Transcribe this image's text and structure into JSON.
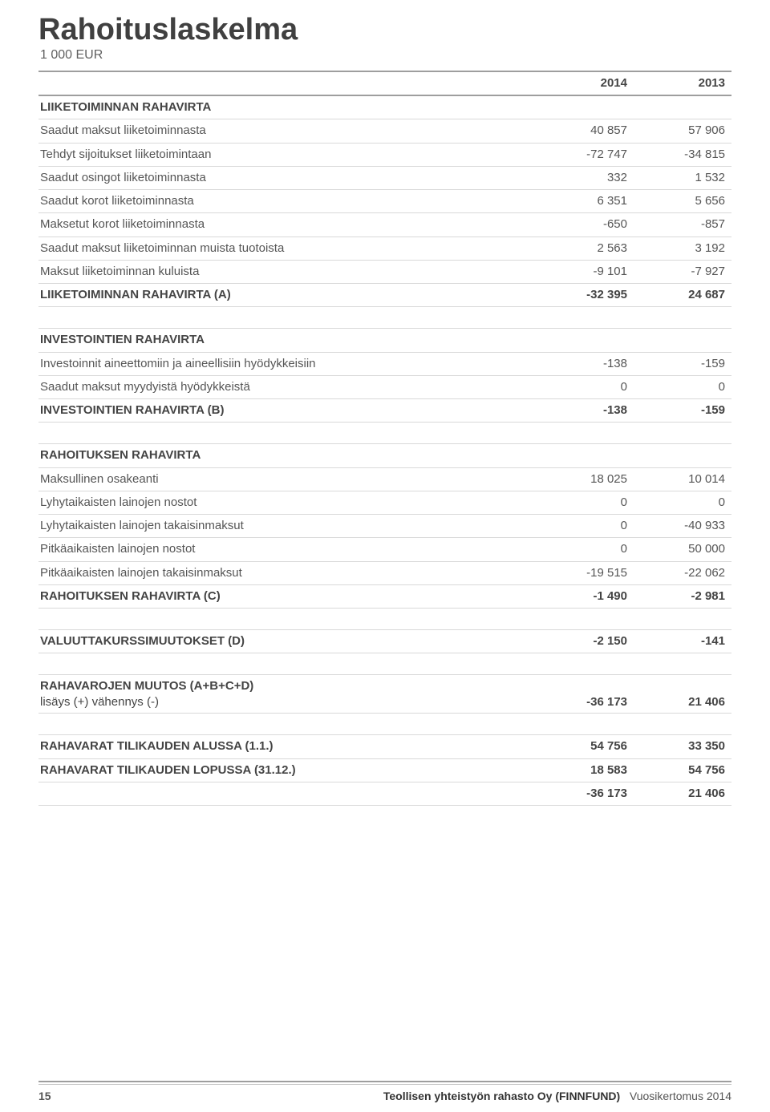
{
  "title": "Rahoituslaskelma",
  "subtitle": "1 000 EUR",
  "colors": {
    "text": "#404040",
    "muted": "#555555",
    "row_border": "#d9d9d9",
    "heavy_rule": "#9e9e9e",
    "background": "#ffffff"
  },
  "columns": {
    "year1": "2014",
    "year2": "2013"
  },
  "sections": [
    {
      "heading": "LIIKETOIMINNAN RAHAVIRTA",
      "rows": [
        {
          "label": "Saadut maksut liiketoiminnasta",
          "v1": "40 857",
          "v2": "57 906"
        },
        {
          "label": "Tehdyt sijoitukset liiketoimintaan",
          "v1": "-72 747",
          "v2": "-34 815"
        },
        {
          "label": "Saadut osingot liiketoiminnasta",
          "v1": "332",
          "v2": "1 532"
        },
        {
          "label": "Saadut korot liiketoiminnasta",
          "v1": "6 351",
          "v2": "5 656"
        },
        {
          "label": "Maksetut korot liiketoiminnasta",
          "v1": "-650",
          "v2": "-857"
        },
        {
          "label": "Saadut maksut liiketoiminnan muista tuotoista",
          "v1": "2 563",
          "v2": "3 192"
        },
        {
          "label": "Maksut liiketoiminnan kuluista",
          "v1": "-9 101",
          "v2": "-7 927"
        },
        {
          "label": "LIIKETOIMINNAN RAHAVIRTA (A)",
          "v1": "-32 395",
          "v2": "24 687",
          "bold": true
        }
      ]
    },
    {
      "heading": "INVESTOINTIEN RAHAVIRTA",
      "rows": [
        {
          "label": "Investoinnit aineettomiin ja aineellisiin hyödykkeisiin",
          "v1": "-138",
          "v2": "-159"
        },
        {
          "label": "Saadut maksut myydyistä hyödykkeistä",
          "v1": "0",
          "v2": "0"
        },
        {
          "label": "INVESTOINTIEN RAHAVIRTA (B)",
          "v1": "-138",
          "v2": "-159",
          "bold": true
        }
      ]
    },
    {
      "heading": "RAHOITUKSEN RAHAVIRTA",
      "rows": [
        {
          "label": "Maksullinen osakeanti",
          "v1": "18 025",
          "v2": "10 014"
        },
        {
          "label": "Lyhytaikaisten lainojen nostot",
          "v1": "0",
          "v2": "0"
        },
        {
          "label": "Lyhytaikaisten lainojen takaisinmaksut",
          "v1": "0",
          "v2": "-40 933"
        },
        {
          "label": "Pitkäaikaisten lainojen nostot",
          "v1": "0",
          "v2": "50 000"
        },
        {
          "label": "Pitkäaikaisten lainojen takaisinmaksut",
          "v1": "-19 515",
          "v2": "-22 062"
        },
        {
          "label": "RAHOITUKSEN RAHAVIRTA (C)",
          "v1": "-1 490",
          "v2": "-2 981",
          "bold": true
        }
      ]
    }
  ],
  "single_rows": {
    "fx": {
      "label": "VALUUTTAKURSSIMUUTOKSET (D)",
      "v1": "-2 150",
      "v2": "-141"
    },
    "change": {
      "label_line1": "RAHAVAROJEN MUUTOS (A+B+C+D)",
      "label_line2": "lisäys (+) vähennys (-)",
      "v1": "-36 173",
      "v2": "21 406"
    },
    "start": {
      "label": "RAHAVARAT TILIKAUDEN ALUSSA (1.1.)",
      "v1": "54 756",
      "v2": "33 350"
    },
    "end": {
      "label": "RAHAVARAT TILIKAUDEN LOPUSSA (31.12.)",
      "v1": "18 583",
      "v2": "54 756"
    },
    "check": {
      "label": "",
      "v1": "-36 173",
      "v2": "21 406"
    }
  },
  "footer": {
    "page_number": "15",
    "company_bold": "Teollisen yhteistyön rahasto Oy (FINNFUND)",
    "report": "Vuosikertomus 2014"
  }
}
